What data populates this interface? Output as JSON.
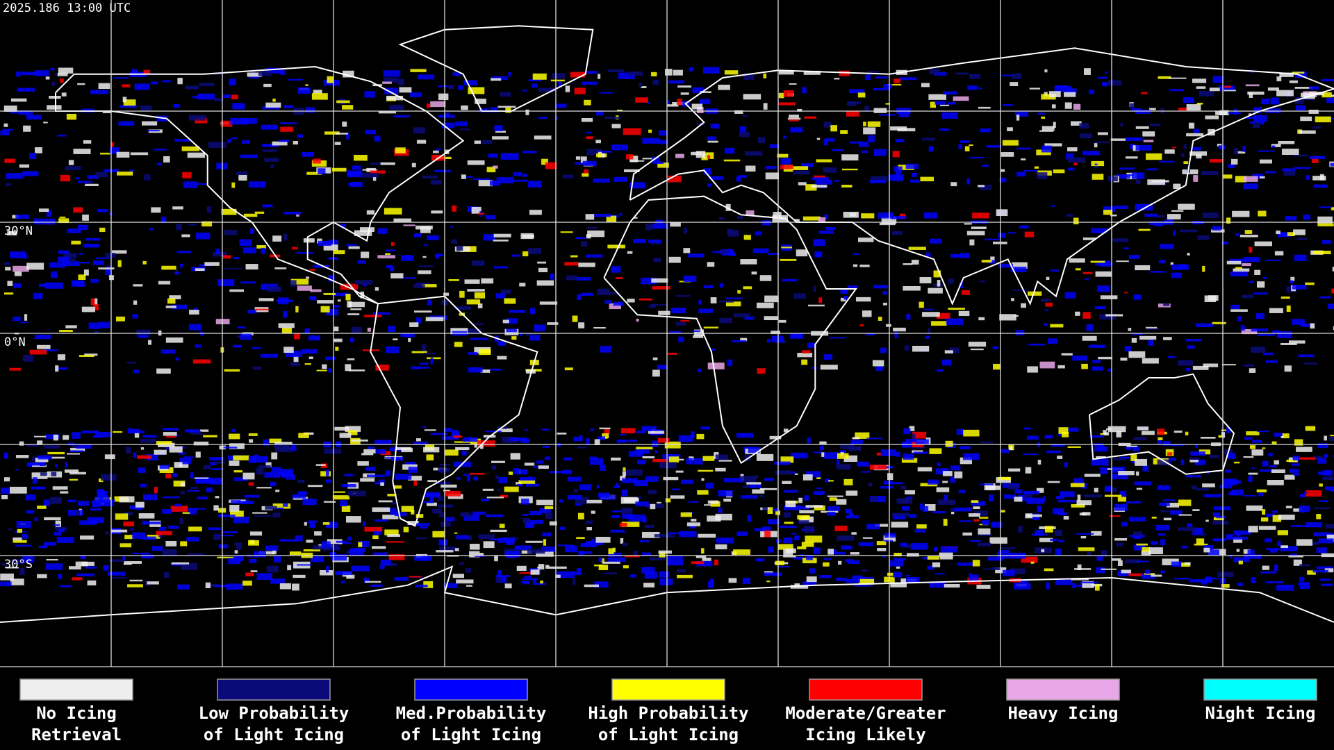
{
  "header": {
    "timestamp": "2025.186 13:00 UTC"
  },
  "map": {
    "lat_labels": [
      "30°N",
      "0°N",
      "30°S"
    ]
  },
  "legend": {
    "items": [
      {
        "lines": [
          "No Icing",
          "Retrieval"
        ],
        "color": "#eeeeee"
      },
      {
        "lines": [
          "Low Probability",
          "of Light Icing"
        ],
        "color": "#0a0a7a"
      },
      {
        "lines": [
          "Med.Probability",
          "of Light Icing"
        ],
        "color": "#0000ff"
      },
      {
        "lines": [
          "High Probability",
          "of Light Icing"
        ],
        "color": "#ffff00"
      },
      {
        "lines": [
          "Moderate/Greater",
          "Icing Likely"
        ],
        "color": "#ff0000"
      },
      {
        "lines": [
          "Heavy Icing"
        ],
        "color": "#e8a8e8"
      },
      {
        "lines": [
          "Night Icing"
        ],
        "color": "#00ffff"
      }
    ]
  }
}
